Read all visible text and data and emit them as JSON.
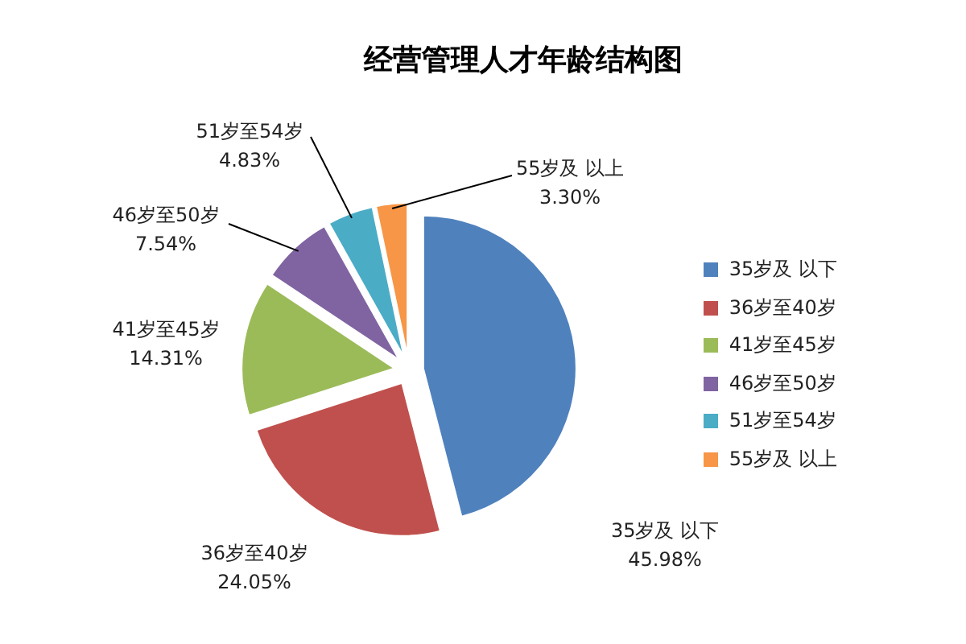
{
  "chart_data": {
    "type": "pie",
    "title": "经营管理人才年龄结构图",
    "categories": [
      "35岁及 以下",
      "36岁至40岁",
      "41岁至45岁",
      "46岁至50岁",
      "51岁至54岁",
      "55岁及 以上"
    ],
    "values": [
      45.98,
      24.05,
      14.31,
      7.54,
      4.83,
      3.3
    ],
    "colors": [
      "#4f81bd",
      "#c0504d",
      "#9bbb59",
      "#8064a2",
      "#4bacc6",
      "#f79646"
    ],
    "value_labels": [
      "45.98%",
      "24.05%",
      "14.31%",
      "7.54%",
      "4.83%",
      "3.30%"
    ],
    "legend": "right"
  }
}
